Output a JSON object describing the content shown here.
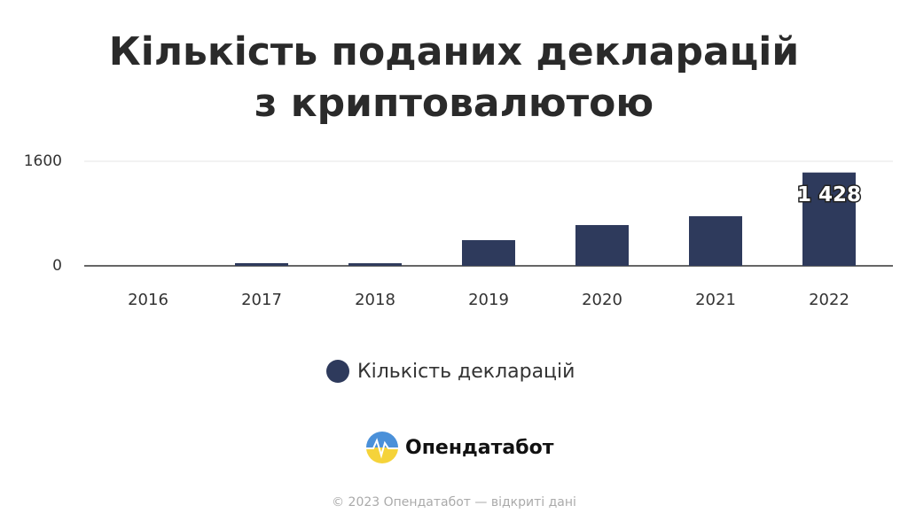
{
  "chart_data": {
    "type": "bar",
    "title": "Кількість поданих декларацій з криптовалютою",
    "categories": [
      "2016",
      "2017",
      "2018",
      "2019",
      "2020",
      "2021",
      "2022"
    ],
    "series": [
      {
        "name": "Кількість декларацій",
        "color": "#2e3a5c",
        "values": [
          0,
          41,
          40,
          393,
          624,
          759,
          1428
        ],
        "value_labels": [
          null,
          null,
          null,
          null,
          null,
          null,
          "1 428"
        ]
      }
    ],
    "ylim": [
      0,
      1600
    ],
    "yticks": [
      0,
      1600
    ],
    "grid": true,
    "legend": "bottom"
  },
  "footer": {
    "brand": "Опендатабот",
    "copyright": "© 2023 Опендатабот — відкриті дані"
  }
}
